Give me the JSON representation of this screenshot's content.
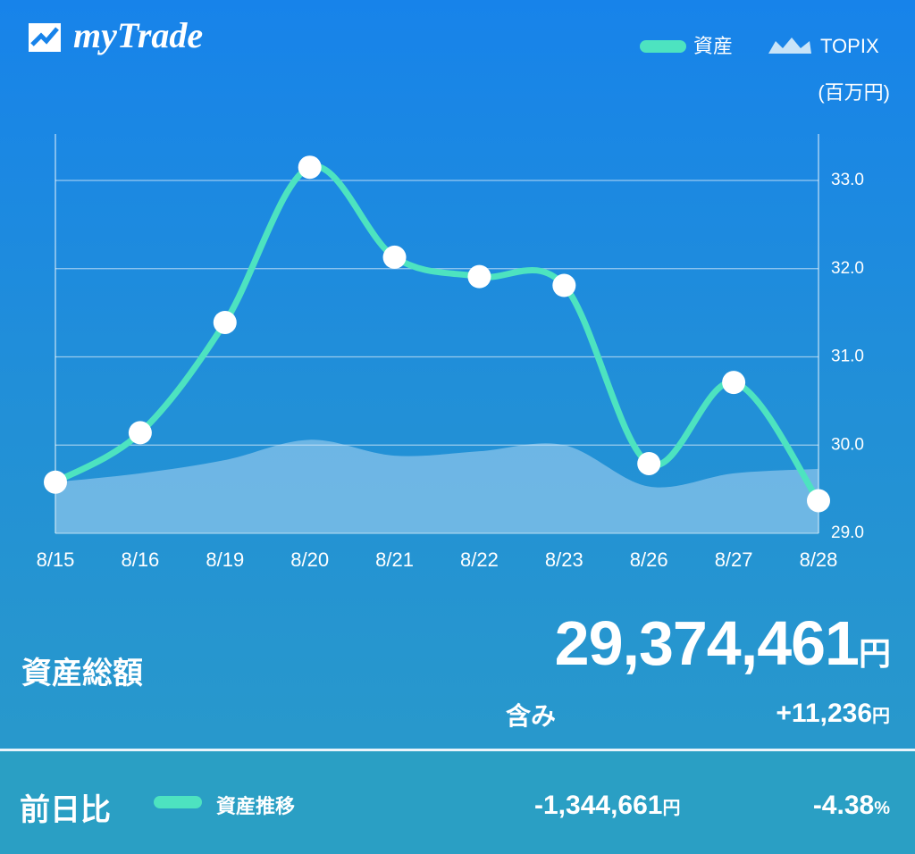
{
  "header": {
    "logo": "myTrade"
  },
  "chart_data": {
    "type": "line",
    "y_label": "(百万円)",
    "categories": [
      "8/15",
      "8/16",
      "8/19",
      "8/20",
      "8/21",
      "8/22",
      "8/23",
      "8/26",
      "8/27",
      "8/28"
    ],
    "series": [
      {
        "name": "資産",
        "color": "#4de3c0",
        "values": [
          29.58,
          30.14,
          31.39,
          33.15,
          32.13,
          31.91,
          31.81,
          29.79,
          30.71,
          29.37
        ]
      },
      {
        "name": "TOPIX",
        "color": "#c9e4f8",
        "values": [
          29.58,
          29.68,
          29.83,
          30.06,
          29.88,
          29.93,
          30.0,
          29.53,
          29.68,
          29.73
        ]
      }
    ],
    "ylim": [
      29,
      33.5
    ],
    "yticks": [
      {
        "value": 29,
        "label": "29.0"
      },
      {
        "value": 30,
        "label": "30.0"
      },
      {
        "value": 31,
        "label": "31.0"
      },
      {
        "value": 32,
        "label": "32.0"
      },
      {
        "value": 33,
        "label": "33.0"
      }
    ],
    "grid": true
  },
  "summary": {
    "label": "資産総額",
    "total": "29,374,461",
    "total_unit": "円",
    "sub_label": "含み",
    "sub_value": "+11,236",
    "sub_unit": "円"
  },
  "footer": {
    "label": "前日比",
    "legend": "資産推移",
    "change": "-1,344,661",
    "change_unit": "円",
    "percent": "-4.38",
    "percent_unit": "%"
  }
}
